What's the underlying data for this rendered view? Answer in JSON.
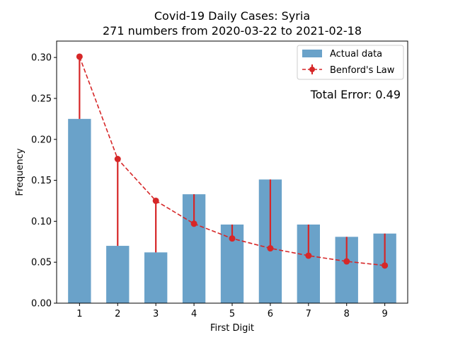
{
  "chart_data": {
    "type": "bar",
    "title": "Covid-19 Daily Cases: Syria",
    "subtitle": "271 numbers from 2020-03-22 to 2021-02-18",
    "xlabel": "First Digit",
    "ylabel": "Frequency",
    "categories": [
      "1",
      "2",
      "3",
      "4",
      "5",
      "6",
      "7",
      "8",
      "9"
    ],
    "ylim": [
      0,
      0.32
    ],
    "yticks": [
      "0.00",
      "0.05",
      "0.10",
      "0.15",
      "0.20",
      "0.25",
      "0.30"
    ],
    "series": [
      {
        "name": "Actual data",
        "kind": "bar",
        "color": "#6aa2c9",
        "values": [
          0.225,
          0.07,
          0.062,
          0.133,
          0.096,
          0.151,
          0.096,
          0.081,
          0.085
        ]
      },
      {
        "name": "Benford's Law",
        "kind": "line",
        "color": "#d62728",
        "values": [
          0.301,
          0.176,
          0.125,
          0.097,
          0.079,
          0.067,
          0.058,
          0.051,
          0.046
        ]
      }
    ],
    "legend_position": "top-right",
    "annotation": "Total Error: 0.49",
    "annotation_color": "#d62728",
    "grid": false
  }
}
